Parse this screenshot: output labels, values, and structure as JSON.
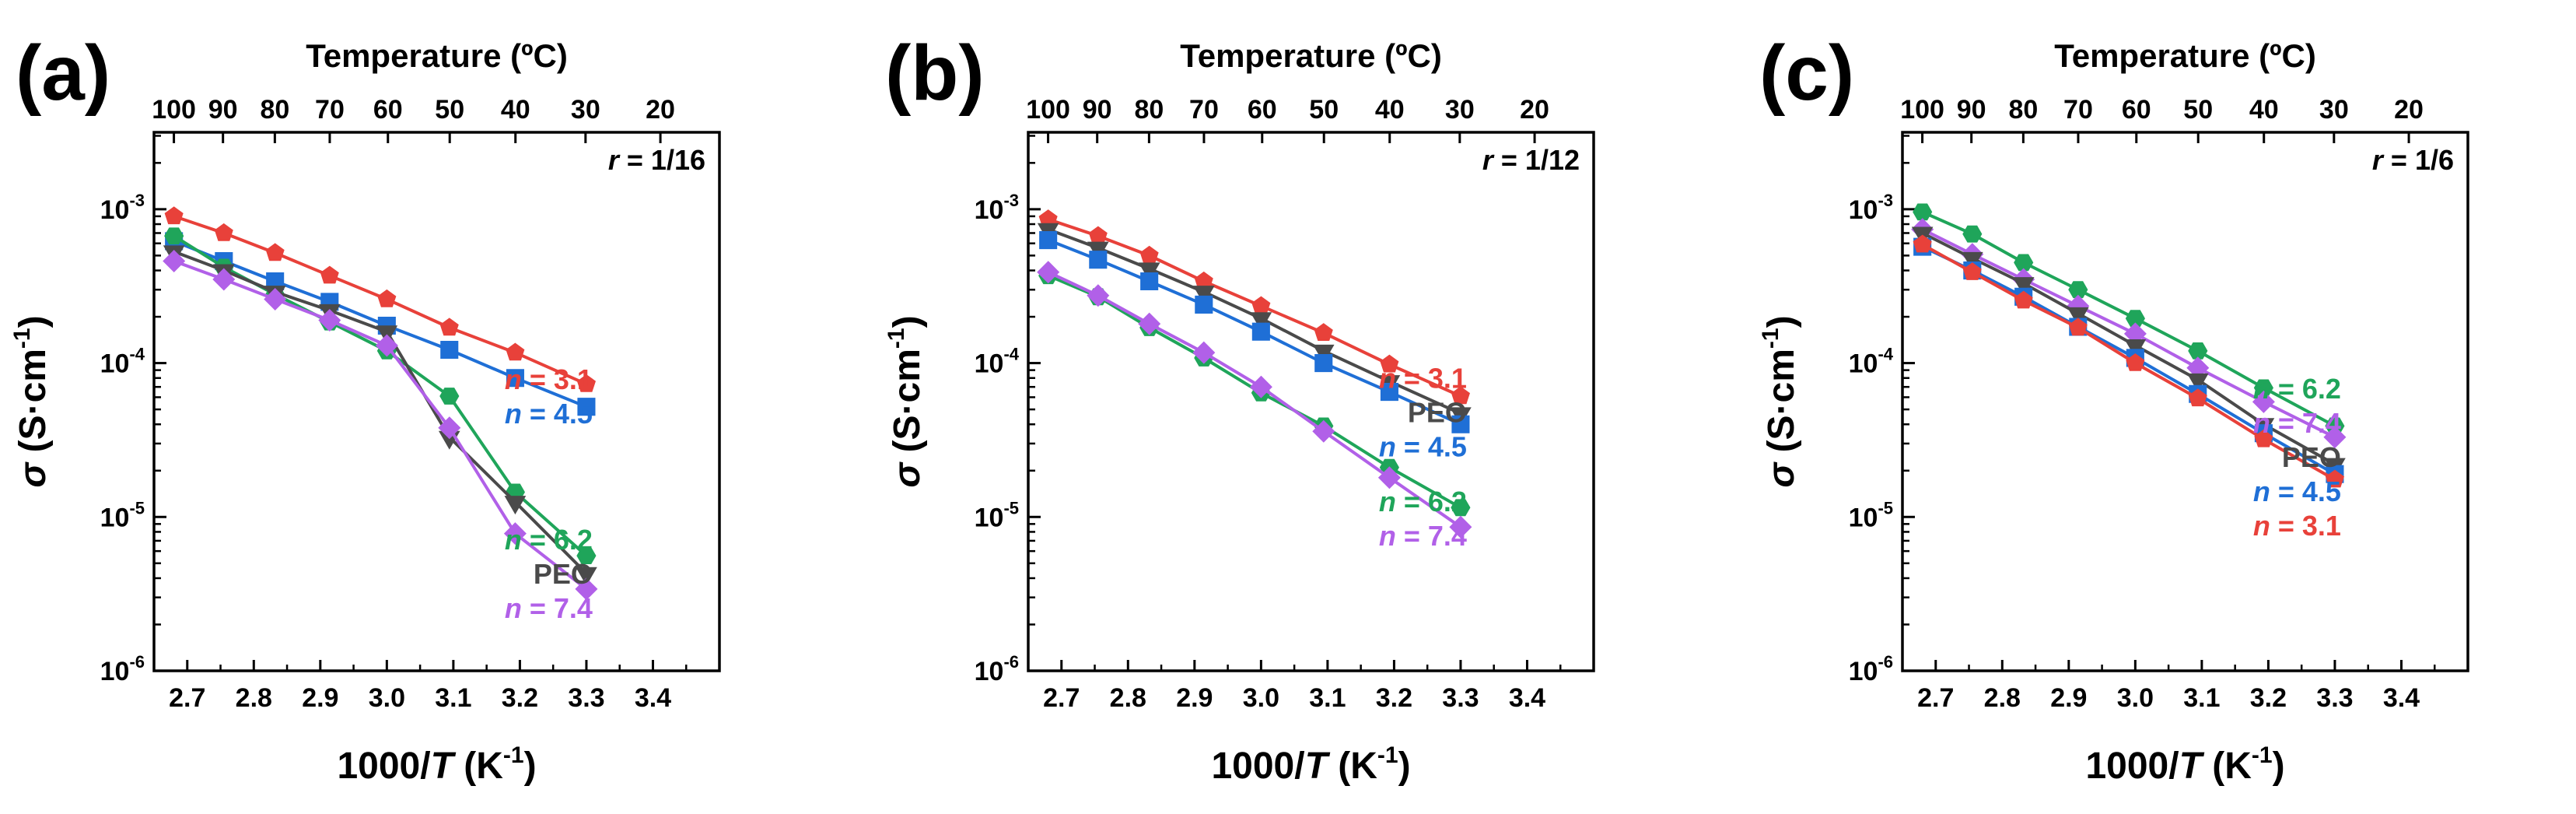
{
  "chart_data": [
    {
      "panel_label": "(a)",
      "type": "line",
      "xlabel_prefix": "1000/",
      "xlabel_var": "T",
      "xlabel_unit": " (K",
      "xlabel_exp": "-1",
      "xlabel_close": ")",
      "top_xlabel": "Temperature (ºC)",
      "ylabel_var": "σ",
      "ylabel_unit": " (S·cm",
      "ylabel_exp": "-1",
      "ylabel_close": ")",
      "annotation_var": "r",
      "annotation_value": " = 1/16",
      "xlim": [
        2.65,
        3.5
      ],
      "ylim_log10": [
        -6,
        -2.5
      ],
      "x_ticks": [
        "2.7",
        "2.8",
        "2.9",
        "3.0",
        "3.1",
        "3.2",
        "3.3",
        "3.4"
      ],
      "x_tick_values": [
        2.7,
        2.8,
        2.9,
        3.0,
        3.1,
        3.2,
        3.3,
        3.4
      ],
      "top_ticks": [
        "100",
        "90",
        "80",
        "70",
        "60",
        "50",
        "40",
        "30",
        "20"
      ],
      "y_tick_exponents": [
        -6,
        -5,
        -4,
        -3
      ],
      "y_tick_base": "10",
      "x": [
        2.68,
        2.755,
        2.832,
        2.914,
        3.0,
        3.094,
        3.193,
        3.3
      ],
      "series": [
        {
          "name": "n = 3.1",
          "var": "n",
          "value": " = 3.1",
          "color": "#e8413a",
          "marker": "pentagon",
          "values": [
            0.0009,
            0.0007,
            0.00052,
            0.00037,
            0.00026,
            0.00017,
            0.000117,
            7.3e-05
          ]
        },
        {
          "name": "n = 4.5",
          "var": "n",
          "value": " = 4.5",
          "color": "#1f6fd6",
          "marker": "square",
          "values": [
            0.00062,
            0.00046,
            0.00034,
            0.00025,
            0.000175,
            0.000122,
            8e-05,
            5.2e-05
          ]
        },
        {
          "name": "n = 6.2",
          "var": "n",
          "value": " = 6.2",
          "color": "#1fa55a",
          "marker": "hexagon",
          "values": [
            0.00067,
            0.00042,
            0.00028,
            0.000185,
            0.00012,
            6.1e-05,
            1.45e-05,
            5.6e-06
          ]
        },
        {
          "name": "PEO",
          "var": "",
          "value": "PEO",
          "color": "#4a4a4a",
          "marker": "triangle-down",
          "values": [
            0.00053,
            0.0004,
            0.00029,
            0.00022,
            0.00016,
            3.3e-05,
            1.25e-05,
            4.3e-06
          ]
        },
        {
          "name": "n = 7.4",
          "var": "n",
          "value": " = 7.4",
          "color": "#b160e8",
          "marker": "diamond",
          "values": [
            0.00046,
            0.00035,
            0.00026,
            0.00019,
            0.00013,
            3.8e-05,
            7.8e-06,
            3.4e-06
          ]
        }
      ],
      "legend_order": [
        "n = 3.1",
        "n = 4.5",
        "n = 6.2",
        "PEO",
        "n = 7.4"
      ],
      "legend_groups": [
        [
          0,
          1
        ],
        [
          2,
          3,
          4
        ]
      ]
    },
    {
      "panel_label": "(b)",
      "type": "line",
      "xlabel_prefix": "1000/",
      "xlabel_var": "T",
      "xlabel_unit": " (K",
      "xlabel_exp": "-1",
      "xlabel_close": ")",
      "top_xlabel": "Temperature (ºC)",
      "ylabel_var": "σ",
      "ylabel_unit": " (S·cm",
      "ylabel_exp": "-1",
      "ylabel_close": ")",
      "annotation_var": "r",
      "annotation_value": " = 1/12",
      "xlim": [
        2.65,
        3.5
      ],
      "ylim_log10": [
        -6,
        -2.5
      ],
      "x_ticks": [
        "2.7",
        "2.8",
        "2.9",
        "3.0",
        "3.1",
        "3.2",
        "3.3",
        "3.4"
      ],
      "x_tick_values": [
        2.7,
        2.8,
        2.9,
        3.0,
        3.1,
        3.2,
        3.3,
        3.4
      ],
      "top_ticks": [
        "100",
        "90",
        "80",
        "70",
        "60",
        "50",
        "40",
        "30",
        "20"
      ],
      "y_tick_exponents": [
        -6,
        -5,
        -4,
        -3
      ],
      "y_tick_base": "10",
      "x": [
        2.68,
        2.755,
        2.832,
        2.914,
        3.0,
        3.094,
        3.193,
        3.3
      ],
      "series": [
        {
          "name": "n = 3.1",
          "var": "n",
          "value": " = 3.1",
          "color": "#e8413a",
          "marker": "pentagon",
          "values": [
            0.00086,
            0.00067,
            0.0005,
            0.00034,
            0.000235,
            0.000157,
            9.8e-05,
            6.1e-05
          ]
        },
        {
          "name": "PEO",
          "var": "",
          "value": "PEO",
          "color": "#4a4a4a",
          "marker": "triangle-down",
          "values": [
            0.00074,
            0.00056,
            0.00041,
            0.00029,
            0.000195,
            0.00012,
            7.6e-05,
            4.7e-05
          ]
        },
        {
          "name": "n = 4.5",
          "var": "n",
          "value": " = 4.5",
          "color": "#1f6fd6",
          "marker": "square",
          "values": [
            0.00063,
            0.00047,
            0.00034,
            0.00024,
            0.00016,
            0.0001,
            6.5e-05,
            4e-05
          ]
        },
        {
          "name": "n = 6.2",
          "var": "n",
          "value": " = 6.2",
          "color": "#1fa55a",
          "marker": "hexagon",
          "values": [
            0.00037,
            0.00027,
            0.00017,
            0.000108,
            6.4e-05,
            3.9e-05,
            2.1e-05,
            1.15e-05
          ]
        },
        {
          "name": "n = 7.4",
          "var": "n",
          "value": " = 7.4",
          "color": "#b160e8",
          "marker": "diamond",
          "values": [
            0.00039,
            0.000275,
            0.00018,
            0.000117,
            7e-05,
            3.6e-05,
            1.8e-05,
            8.6e-06
          ]
        }
      ],
      "legend_order": [
        "n = 3.1",
        "PEO",
        "n = 4.5",
        "n = 6.2",
        "n = 7.4"
      ],
      "legend_groups": [
        [
          0,
          1,
          2
        ],
        [
          3,
          4
        ]
      ]
    },
    {
      "panel_label": "(c)",
      "type": "line",
      "xlabel_prefix": "1000/",
      "xlabel_var": "T",
      "xlabel_unit": " (K",
      "xlabel_exp": "-1",
      "xlabel_close": ")",
      "top_xlabel": "Temperature (ºC)",
      "ylabel_var": "σ",
      "ylabel_unit": " (S·cm",
      "ylabel_exp": "-1",
      "ylabel_close": ")",
      "annotation_var": "r",
      "annotation_value": " = 1/6",
      "xlim": [
        2.65,
        3.5
      ],
      "ylim_log10": [
        -6,
        -2.5
      ],
      "x_ticks": [
        "2.7",
        "2.8",
        "2.9",
        "3.0",
        "3.1",
        "3.2",
        "3.3",
        "3.4"
      ],
      "x_tick_values": [
        2.7,
        2.8,
        2.9,
        3.0,
        3.1,
        3.2,
        3.3,
        3.4
      ],
      "top_ticks": [
        "100",
        "90",
        "80",
        "70",
        "60",
        "50",
        "40",
        "30",
        "20"
      ],
      "y_tick_exponents": [
        -6,
        -5,
        -4,
        -3
      ],
      "y_tick_base": "10",
      "x": [
        2.68,
        2.755,
        2.832,
        2.914,
        3.0,
        3.094,
        3.193,
        3.3
      ],
      "series": [
        {
          "name": "n = 6.2",
          "var": "n",
          "value": " = 6.2",
          "color": "#1fa55a",
          "marker": "hexagon",
          "values": [
            0.00096,
            0.00069,
            0.00045,
            0.0003,
            0.000195,
            0.00012,
            6.9e-05,
            3.9e-05
          ]
        },
        {
          "name": "n = 7.4",
          "var": "n",
          "value": " = 7.4",
          "color": "#b160e8",
          "marker": "diamond",
          "values": [
            0.00074,
            0.00051,
            0.00035,
            0.000235,
            0.000155,
            9.3e-05,
            5.6e-05,
            3.3e-05
          ]
        },
        {
          "name": "PEO",
          "var": "",
          "value": "PEO",
          "color": "#4a4a4a",
          "marker": "triangle-down",
          "values": [
            0.0007,
            0.00048,
            0.00033,
            0.00021,
            0.00013,
            7.8e-05,
            4e-05,
            2.2e-05
          ]
        },
        {
          "name": "n = 4.5",
          "var": "n",
          "value": " = 4.5",
          "color": "#1f6fd6",
          "marker": "square",
          "values": [
            0.00057,
            0.0004,
            0.00027,
            0.000172,
            0.000108,
            6.3e-05,
            3.5e-05,
            1.9e-05
          ]
        },
        {
          "name": "n = 3.1",
          "var": "n",
          "value": " = 3.1",
          "color": "#e8413a",
          "marker": "pentagon",
          "values": [
            0.00059,
            0.00039,
            0.000255,
            0.00017,
            0.0001,
            5.9e-05,
            3.2e-05,
            1.75e-05
          ]
        }
      ],
      "legend_order": [
        "n = 6.2",
        "n = 7.4",
        "PEO",
        "n = 4.5",
        "n = 3.1"
      ],
      "legend_groups": [
        [
          0,
          1,
          2,
          3,
          4
        ]
      ]
    }
  ]
}
